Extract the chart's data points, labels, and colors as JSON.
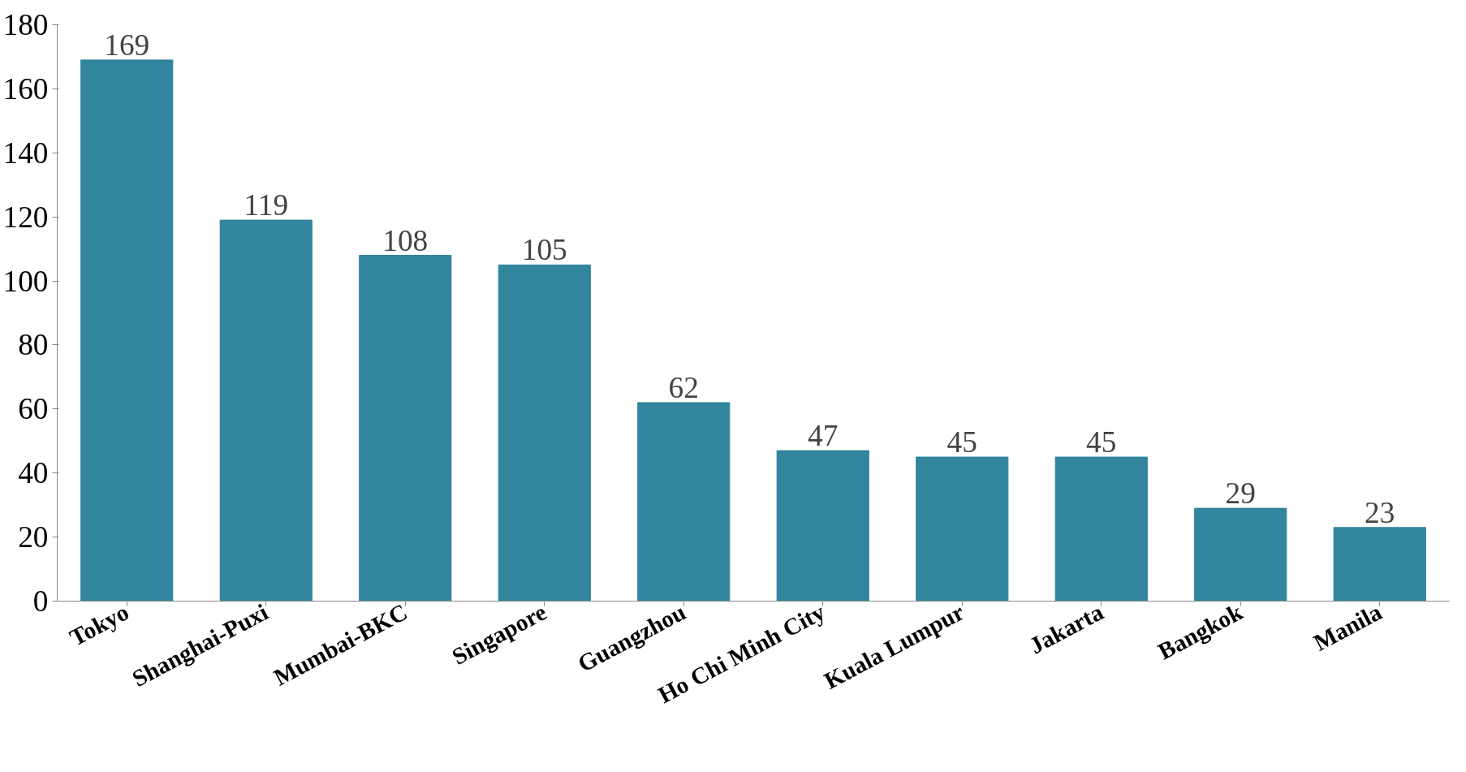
{
  "chart_data": {
    "type": "bar",
    "categories": [
      "Tokyo",
      "Shanghai-Puxi",
      "Mumbai-BKC",
      "Singapore",
      "Guangzhou",
      "Ho Chi Minh City",
      "Kuala Lumpur",
      "Jakarta",
      "Bangkok",
      "Manila"
    ],
    "values": [
      169,
      119,
      108,
      105,
      62,
      47,
      45,
      45,
      29,
      23
    ],
    "color": "#31859c",
    "ylim": [
      0,
      180
    ],
    "yticks": [
      0,
      20,
      40,
      60,
      80,
      100,
      120,
      140,
      160,
      180
    ],
    "grid": false,
    "data_labels": true
  }
}
